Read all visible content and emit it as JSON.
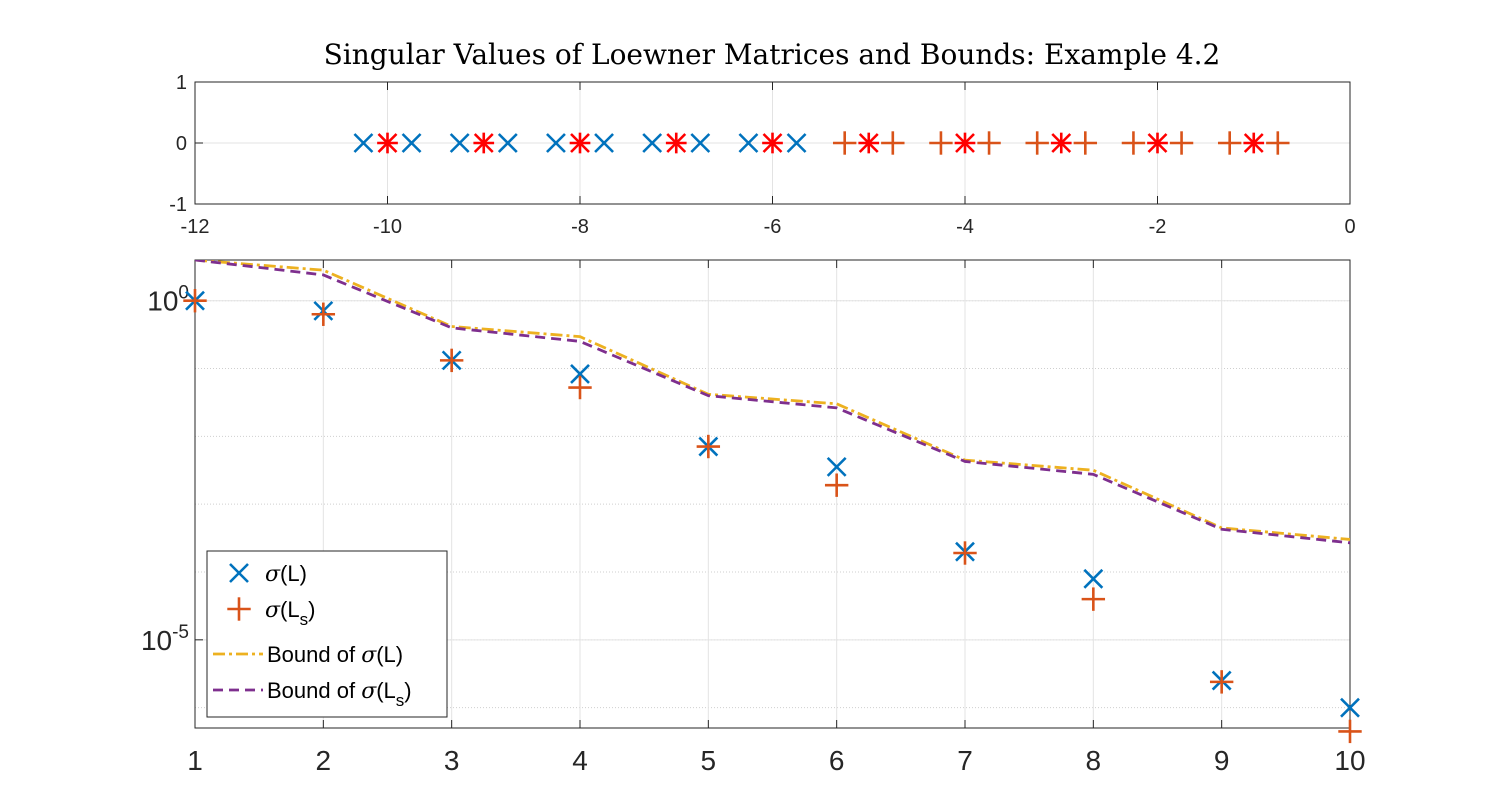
{
  "chart_data": [
    {
      "type": "scatter",
      "title": "Singular Values of Loewner Matrices and Bounds: Example 4.2",
      "xlim": [
        -12,
        0
      ],
      "ylim": [
        -1,
        1
      ],
      "xticks": [
        "-12",
        "-10",
        "-8",
        "-6",
        "-4",
        "-2",
        "0"
      ],
      "yticks": [
        "-1",
        "0",
        "1"
      ],
      "grid": true,
      "series": [
        {
          "name": "x-markers",
          "marker": "x",
          "color": "#0072BD",
          "x": [
            -10.25,
            -9.75,
            -9.25,
            -8.75,
            -8.25,
            -7.75,
            -7.25,
            -6.75,
            -6.25,
            -5.75
          ],
          "y": [
            0,
            0,
            0,
            0,
            0,
            0,
            0,
            0,
            0,
            0
          ]
        },
        {
          "name": "plus-markers",
          "marker": "+",
          "color": "#D95319",
          "x": [
            -5.25,
            -4.75,
            -4.25,
            -3.75,
            -3.25,
            -2.75,
            -2.25,
            -1.75,
            -1.25,
            -0.75
          ],
          "y": [
            0,
            0,
            0,
            0,
            0,
            0,
            0,
            0,
            0,
            0
          ]
        },
        {
          "name": "star-markers",
          "marker": "*",
          "color": "#FF0000",
          "x": [
            -10,
            -9,
            -8,
            -7,
            -6,
            -5,
            -4,
            -3,
            -2,
            -1
          ],
          "y": [
            0,
            0,
            0,
            0,
            0,
            0,
            0,
            0,
            0,
            0
          ]
        }
      ]
    },
    {
      "type": "line",
      "yscale": "log",
      "xlim": [
        1,
        10
      ],
      "ylim_log10": [
        -6.3,
        0.6
      ],
      "xticks": [
        "1",
        "2",
        "3",
        "4",
        "5",
        "6",
        "7",
        "8",
        "9",
        "10"
      ],
      "yticks": [
        {
          "base": "10",
          "exp": "0",
          "log10": 0
        },
        {
          "base": "10",
          "exp": "-5",
          "log10": -5
        }
      ],
      "grid": true,
      "legend_position": "bottom-left",
      "series": [
        {
          "name": "σ(L)",
          "label_sym": "σ",
          "label_arg": "L",
          "label_sub": "",
          "marker": "x",
          "color": "#0072BD",
          "x": [
            1,
            2,
            3,
            4,
            5,
            6,
            7,
            8,
            9,
            10
          ],
          "log10_values": [
            0.0,
            -0.15,
            -0.88,
            -1.08,
            -2.15,
            -2.45,
            -3.7,
            -4.1,
            -5.6,
            -6.0
          ]
        },
        {
          "name": "σ(L_s)",
          "label_sym": "σ",
          "label_arg": "L",
          "label_sub": "s",
          "marker": "+",
          "color": "#D95319",
          "x": [
            1,
            2,
            3,
            4,
            5,
            6,
            7,
            8,
            9,
            10
          ],
          "log10_values": [
            0.0,
            -0.2,
            -0.88,
            -1.28,
            -2.15,
            -2.72,
            -3.72,
            -4.4,
            -5.62,
            -6.35
          ]
        },
        {
          "name": "Bound of σ(L)",
          "label_pre": "Bound of ",
          "label_sym": "σ",
          "label_arg": "L",
          "label_sub": "",
          "style": "dash-dot",
          "color": "#EDB120",
          "x": [
            1,
            2,
            3,
            4,
            5,
            6,
            7,
            8,
            9,
            10
          ],
          "log10_values": [
            0.6,
            0.45,
            -0.38,
            -0.53,
            -1.38,
            -1.52,
            -2.35,
            -2.5,
            -3.35,
            -3.52
          ]
        },
        {
          "name": "Bound of σ(L_s)",
          "label_pre": "Bound of ",
          "label_sym": "σ",
          "label_arg": "L",
          "label_sub": "s",
          "style": "dashed",
          "color": "#7E2F8E",
          "x": [
            1,
            2,
            3,
            4,
            5,
            6,
            7,
            8,
            9,
            10
          ],
          "log10_values": [
            0.6,
            0.38,
            -0.4,
            -0.6,
            -1.4,
            -1.58,
            -2.37,
            -2.56,
            -3.37,
            -3.57
          ]
        }
      ]
    }
  ]
}
